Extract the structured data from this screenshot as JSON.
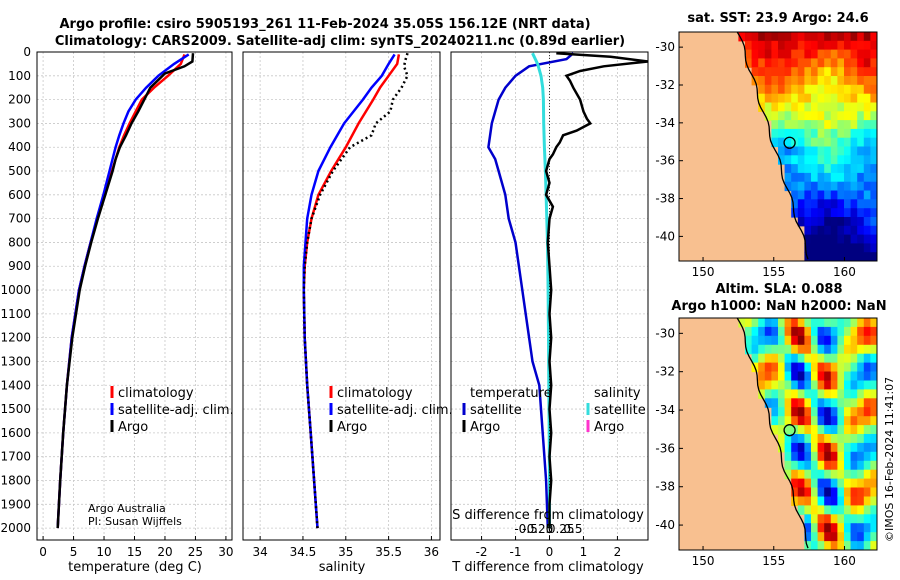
{
  "title_line1": "Argo profile: csiro 5905193_261 11-Feb-2024 35.05S 156.12E (NRT data)",
  "title_line2": "Climatology: CARS2009. Satellite-adj clim: synTS_20240211.nc (0.89d earlier)",
  "attribution": "Argo Australia",
  "pi": "PI: Susan Wijffels",
  "watermark": "©IMOS 16-Feb-2024 11:41:07",
  "colors": {
    "climatology": "#ff0000",
    "satellite": "#0000ff",
    "argo": "#000000",
    "t_sat_diff": "#0000cc",
    "s_sat_diff": "#33dddd",
    "s_argo_diff": "#ff33cc",
    "land": "#f8c090"
  },
  "chart_data": [
    {
      "type": "line",
      "id": "temperature",
      "xlabel": "temperature (deg C)",
      "xlim": [
        -1,
        31
      ],
      "ylim": [
        2050,
        0
      ],
      "xticks": [
        0,
        5,
        10,
        15,
        20,
        25,
        30
      ],
      "yticks": [
        0,
        100,
        200,
        300,
        400,
        500,
        600,
        700,
        800,
        900,
        1000,
        1100,
        1200,
        1300,
        1400,
        1500,
        1600,
        1700,
        1800,
        1900,
        2000
      ],
      "grid": true,
      "legend": [
        "climatology",
        "satellite-adj. clim.",
        "Argo"
      ],
      "series": [
        {
          "name": "climatology",
          "depth": [
            10,
            50,
            100,
            150,
            200,
            250,
            300,
            350,
            400,
            500,
            600,
            700,
            800,
            900,
            1000,
            1200,
            1400,
            1600,
            1800,
            1950,
            2000
          ],
          "values": [
            23.2,
            22.6,
            20.5,
            18.2,
            16.2,
            15.2,
            14.2,
            13.3,
            12.5,
            11.3,
            10.1,
            8.9,
            7.8,
            6.8,
            5.9,
            4.7,
            3.9,
            3.3,
            2.8,
            2.5,
            2.4
          ]
        },
        {
          "name": "satellite-adj. clim.",
          "depth": [
            10,
            50,
            100,
            150,
            200,
            250,
            300,
            350,
            400,
            500,
            600,
            700,
            800,
            900,
            1000,
            1200,
            1400,
            1600,
            1800,
            1950,
            2000
          ],
          "values": [
            23.9,
            21.5,
            18.9,
            16.9,
            15.2,
            14.0,
            13.2,
            12.5,
            11.9,
            10.9,
            9.9,
            8.8,
            7.8,
            6.8,
            5.9,
            4.7,
            3.9,
            3.3,
            2.8,
            2.5,
            2.4
          ]
        },
        {
          "name": "Argo",
          "depth": [
            5,
            40,
            60,
            90,
            110,
            150,
            200,
            250,
            300,
            350,
            400,
            450,
            500,
            600,
            700,
            800,
            900,
            1000,
            1200,
            1400,
            1600,
            1800,
            2000
          ],
          "values": [
            24.6,
            24.5,
            23.2,
            20.0,
            19.2,
            17.6,
            16.6,
            15.6,
            14.5,
            13.6,
            12.6,
            11.9,
            11.4,
            10.2,
            9.0,
            7.9,
            6.9,
            6.0,
            4.8,
            3.9,
            3.3,
            2.8,
            2.4
          ]
        }
      ]
    },
    {
      "type": "line",
      "id": "salinity",
      "xlabel": "salinity",
      "xlim": [
        33.8,
        36.1
      ],
      "ylim": [
        2050,
        0
      ],
      "xticks": [
        34,
        34.5,
        35,
        35.5,
        36
      ],
      "grid": true,
      "legend": [
        "climatology",
        "satellite-adj. clim.",
        "Argo"
      ],
      "series": [
        {
          "name": "climatology",
          "depth": [
            10,
            50,
            100,
            150,
            200,
            300,
            400,
            500,
            600,
            700,
            800,
            900,
            1000,
            1200,
            1400,
            1600,
            1800,
            2000
          ],
          "values": [
            35.62,
            35.6,
            35.5,
            35.4,
            35.32,
            35.15,
            35.0,
            34.83,
            34.68,
            34.6,
            34.55,
            34.52,
            34.51,
            34.52,
            34.55,
            34.59,
            34.63,
            34.67
          ]
        },
        {
          "name": "satellite-adj. clim.",
          "depth": [
            10,
            50,
            100,
            150,
            200,
            300,
            400,
            500,
            600,
            700,
            800,
            900,
            1000,
            1200,
            1400,
            1600,
            1800,
            2000
          ],
          "values": [
            35.57,
            35.5,
            35.42,
            35.3,
            35.2,
            34.98,
            34.82,
            34.68,
            34.6,
            34.55,
            34.53,
            34.51,
            34.51,
            34.52,
            34.55,
            34.59,
            34.63,
            34.67
          ]
        },
        {
          "name": "Argo",
          "depth": [
            5,
            30,
            60,
            100,
            150,
            200,
            250,
            300,
            350,
            400,
            450,
            500,
            600,
            700,
            800,
            900,
            1000,
            1200,
            1400,
            1600,
            1800,
            2000
          ],
          "values": [
            35.72,
            35.7,
            35.68,
            35.72,
            35.65,
            35.55,
            35.52,
            35.35,
            35.3,
            35.05,
            34.95,
            34.85,
            34.7,
            34.6,
            34.55,
            34.52,
            34.51,
            34.52,
            34.55,
            34.59,
            34.63,
            34.67
          ]
        }
      ]
    },
    {
      "type": "line",
      "id": "difference",
      "xlabel": "T difference from climatology",
      "secondary_xlabel": "S difference from climatology",
      "xlim": [
        -2.9,
        2.9
      ],
      "ylim": [
        2050,
        0
      ],
      "xticks": [
        -2,
        -1,
        0,
        1,
        2
      ],
      "s_ticks": [
        "-0.5",
        "-0.25",
        "0",
        "0.25",
        "0.5"
      ],
      "grid": true,
      "legend_t_title": "temperature",
      "legend_s_title": "salinity",
      "legend_t": [
        "satellite",
        "Argo"
      ],
      "legend_s": [
        "satellite",
        "Argo"
      ],
      "series": [
        {
          "name": "T satellite",
          "depth": [
            5,
            30,
            60,
            100,
            150,
            200,
            250,
            300,
            350,
            400,
            450,
            500,
            600,
            700,
            800,
            900,
            1000,
            1100,
            1200,
            1300,
            1400,
            1600,
            1800,
            2000
          ],
          "values": [
            0.7,
            0.5,
            -0.6,
            -1.0,
            -1.3,
            -1.5,
            -1.6,
            -1.7,
            -1.75,
            -1.8,
            -1.6,
            -1.5,
            -1.3,
            -1.2,
            -1.0,
            -0.9,
            -0.8,
            -0.7,
            -0.6,
            -0.5,
            -0.3,
            -0.2,
            -0.1,
            -0.05
          ]
        },
        {
          "name": "S satellite",
          "depth": [
            5,
            50,
            100,
            150,
            200,
            300,
            400,
            500,
            600,
            700,
            800,
            900,
            1000,
            1200,
            1400,
            1600,
            1800,
            2000
          ],
          "values": [
            -0.5,
            -0.35,
            -0.25,
            -0.2,
            -0.18,
            -0.17,
            -0.15,
            -0.12,
            -0.1,
            -0.08,
            -0.06,
            -0.05,
            -0.04,
            -0.03,
            -0.02,
            -0.01,
            0.0,
            0.0
          ]
        },
        {
          "name": "T Argo",
          "depth": [
            5,
            20,
            40,
            60,
            80,
            100,
            120,
            150,
            200,
            250,
            280,
            300,
            330,
            350,
            380,
            400,
            430,
            450,
            500,
            550,
            600,
            650,
            700,
            800,
            900,
            1000,
            1100,
            1200,
            1300,
            1400,
            1500,
            1600,
            1700,
            1800,
            1900,
            2000
          ],
          "values": [
            0.2,
            1.8,
            2.9,
            1.6,
            0.9,
            0.5,
            0.6,
            0.7,
            0.9,
            1.0,
            1.1,
            1.2,
            0.8,
            0.4,
            0.3,
            0.2,
            0.1,
            0.0,
            -0.1,
            0.0,
            -0.1,
            0.1,
            0.0,
            -0.05,
            0.0,
            0.05,
            0.0,
            0.05,
            0.0,
            0.05,
            0.0,
            0.05,
            0.0,
            0.05,
            0.0,
            0.0
          ]
        }
      ]
    },
    {
      "type": "heatmap",
      "id": "sst_map",
      "title": "sat. SST: 23.9 Argo: 24.6",
      "xticks": [
        150,
        155,
        160
      ],
      "yticks": [
        -30,
        -32,
        -34,
        -36,
        -38,
        -40
      ]
    },
    {
      "type": "heatmap",
      "id": "sla_map",
      "title_line1": "Altim. SLA: 0.088",
      "title_line2": "Argo h1000: NaN h2000: NaN",
      "xticks": [
        150,
        155,
        160
      ],
      "yticks": [
        -30,
        -32,
        -34,
        -36,
        -38,
        -40
      ]
    }
  ]
}
